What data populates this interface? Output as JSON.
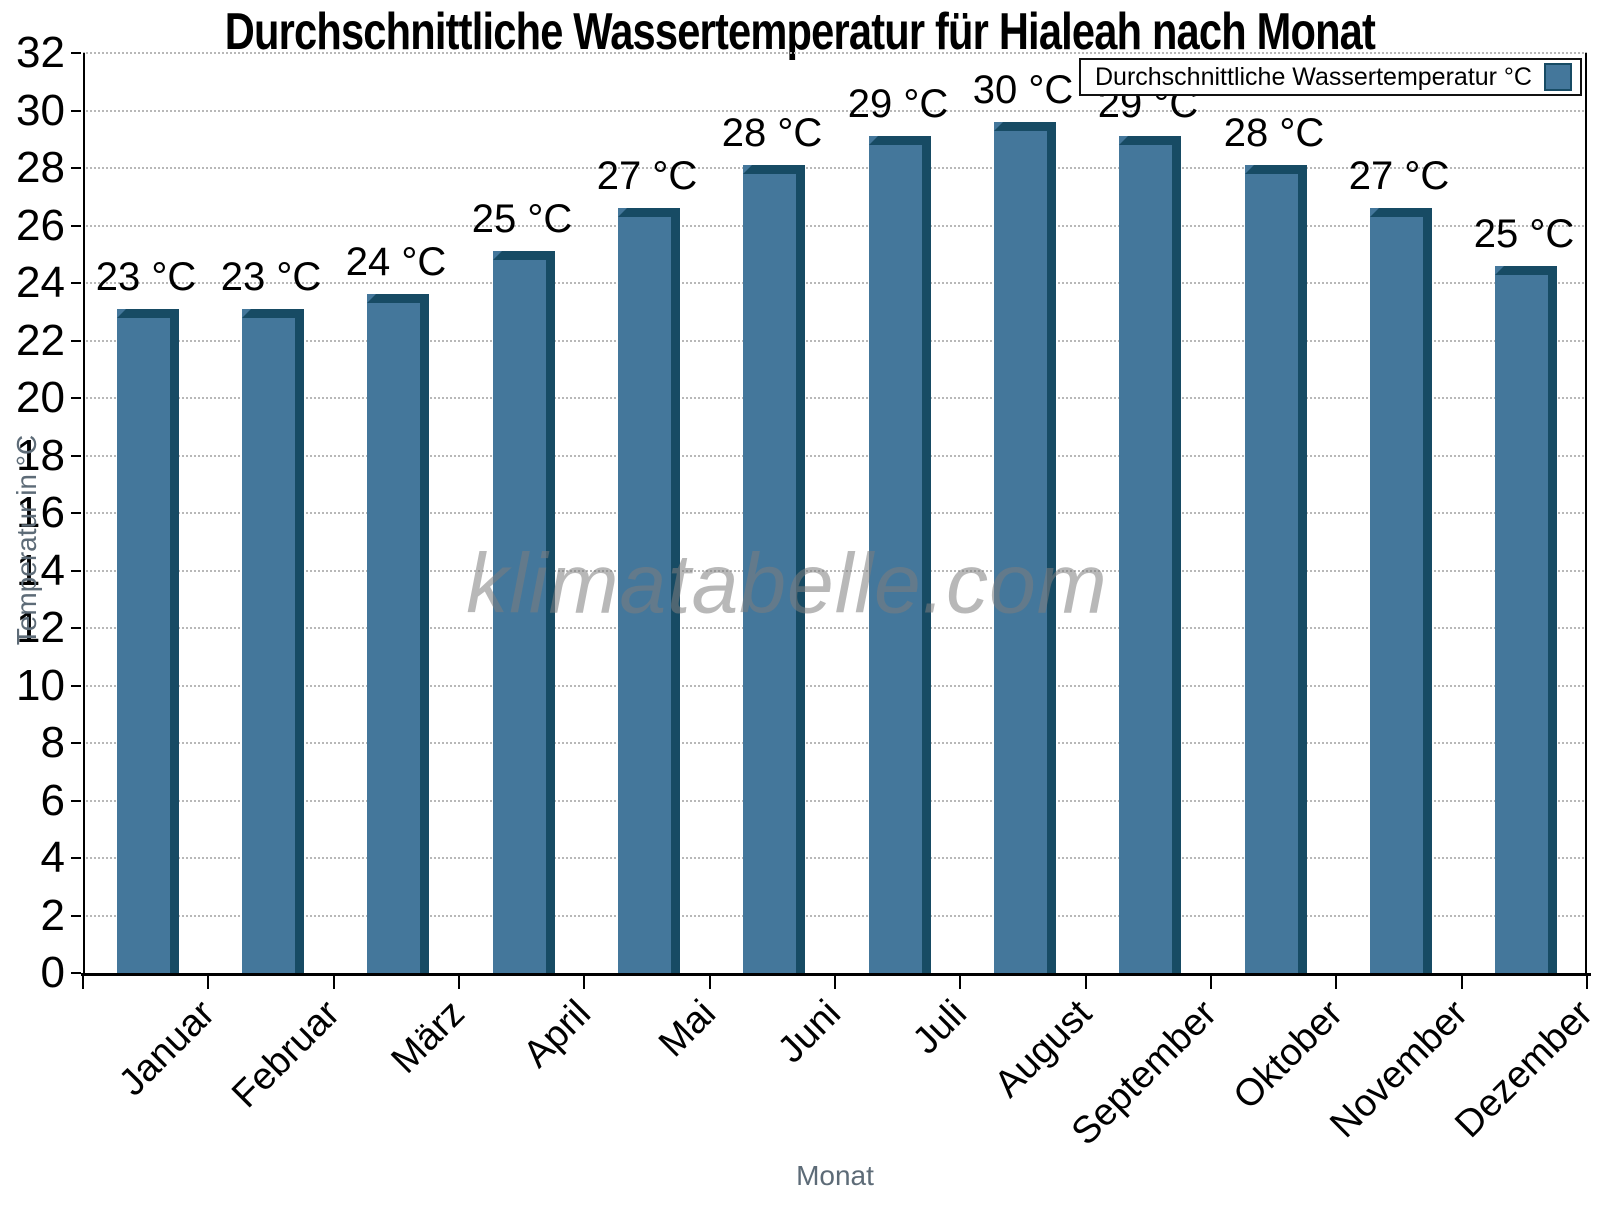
{
  "watermark": "klimatabelle.com",
  "colors": {
    "bar_face": "#44779B",
    "bar_edge": "#174B64",
    "gridline": "#b8b8b8",
    "axis": "#000000",
    "axis_title_text": "#5d6b77",
    "label_text": "#000000"
  },
  "legend": {
    "label": "Durchschnittliche Wassertemperatur °C"
  },
  "chart_data": {
    "type": "bar",
    "title": "Durchschnittliche Wassertemperatur für Hialeah nach Monat",
    "xlabel": "Monat",
    "ylabel": "Temperatur in °C",
    "ylim": [
      0,
      32
    ],
    "ytick_step": 2,
    "grid": true,
    "gridline_style": "dotted",
    "legend_position": "top-right",
    "categories": [
      "Januar",
      "Februar",
      "März",
      "April",
      "Mai",
      "Juni",
      "Juli",
      "August",
      "September",
      "Oktober",
      "November",
      "Dezember"
    ],
    "series": [
      {
        "name": "Durchschnittliche Wassertemperatur °C",
        "values": [
          23.1,
          23.1,
          23.6,
          25.1,
          26.6,
          28.1,
          29.1,
          29.6,
          29.1,
          28.1,
          26.6,
          24.6
        ],
        "data_labels": [
          "23 °C",
          "23 °C",
          "24 °C",
          "25 °C",
          "27 °C",
          "28 °C",
          "29 °C",
          "30 °C",
          "29 °C",
          "28 °C",
          "27 °C",
          "25 °C"
        ]
      }
    ]
  }
}
